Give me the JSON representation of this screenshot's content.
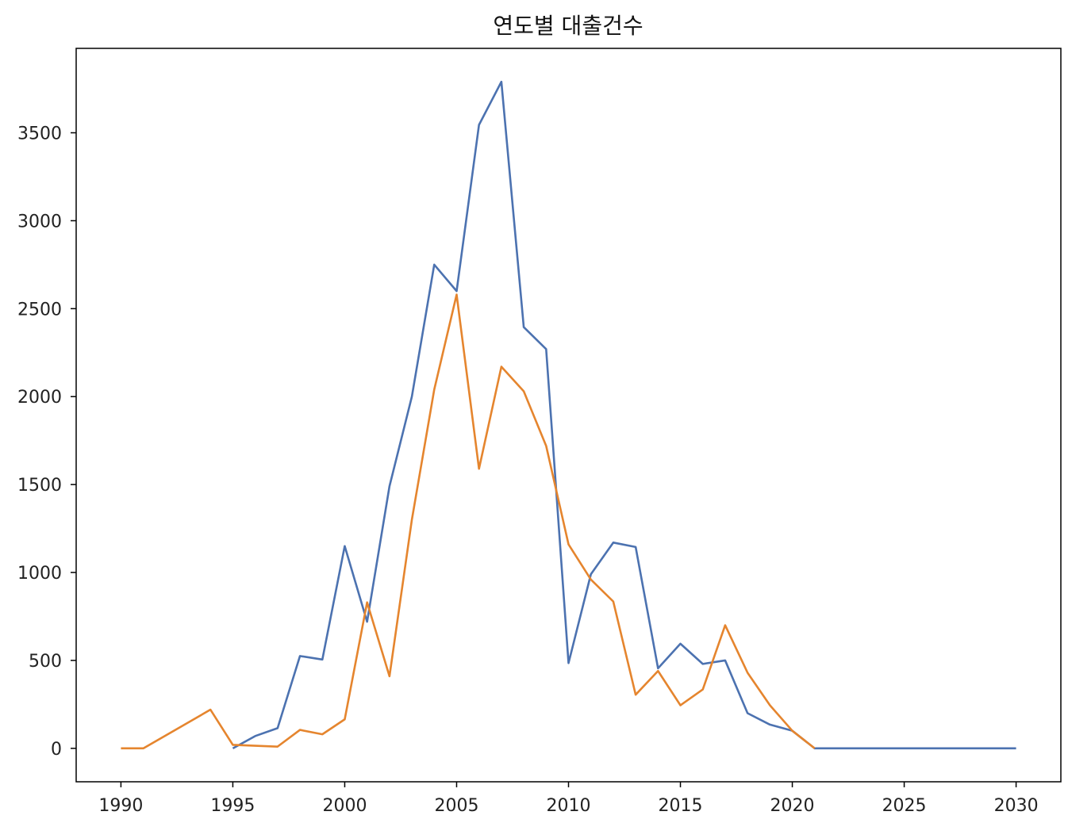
{
  "chart_data": {
    "type": "line",
    "title": "연도별 대출건수",
    "xlabel": "",
    "ylabel": "",
    "xlim": [
      1988,
      2032
    ],
    "ylim": [
      -190,
      3980
    ],
    "x_ticks": [
      "1990",
      "1995",
      "2000",
      "2005",
      "2010",
      "2015",
      "2020",
      "2025",
      "2030"
    ],
    "y_ticks": [
      "0",
      "500",
      "1000",
      "1500",
      "2000",
      "2500",
      "3000",
      "3500"
    ],
    "grid": false,
    "legend": "none",
    "series": [
      {
        "color": "#4c72b0",
        "points": [
          [
            1995,
            0
          ],
          [
            1996,
            70
          ],
          [
            1997,
            115
          ],
          [
            1998,
            525
          ],
          [
            1999,
            505
          ],
          [
            2000,
            1150
          ],
          [
            2001,
            720
          ],
          [
            2002,
            1490
          ],
          [
            2003,
            2000
          ],
          [
            2004,
            2750
          ],
          [
            2005,
            2600
          ],
          [
            2006,
            3545
          ],
          [
            2007,
            3790
          ],
          [
            2008,
            2395
          ],
          [
            2009,
            2270
          ],
          [
            2010,
            485
          ],
          [
            2011,
            990
          ],
          [
            2012,
            1170
          ],
          [
            2013,
            1145
          ],
          [
            2014,
            455
          ],
          [
            2015,
            595
          ],
          [
            2016,
            480
          ],
          [
            2017,
            500
          ],
          [
            2018,
            200
          ],
          [
            2019,
            135
          ],
          [
            2020,
            100
          ],
          [
            2021,
            0
          ],
          [
            2022,
            0
          ],
          [
            2023,
            0
          ],
          [
            2024,
            0
          ],
          [
            2025,
            0
          ],
          [
            2026,
            0
          ],
          [
            2027,
            0
          ],
          [
            2028,
            0
          ],
          [
            2029,
            0
          ],
          [
            2030,
            0
          ]
        ]
      },
      {
        "color": "#e5852e",
        "points": [
          [
            1990,
            0
          ],
          [
            1991,
            0
          ],
          [
            1994,
            220
          ],
          [
            1995,
            20
          ],
          [
            1996,
            15
          ],
          [
            1997,
            10
          ],
          [
            1998,
            105
          ],
          [
            1999,
            80
          ],
          [
            2000,
            165
          ],
          [
            2001,
            830
          ],
          [
            2002,
            410
          ],
          [
            2003,
            1300
          ],
          [
            2004,
            2040
          ],
          [
            2005,
            2580
          ],
          [
            2006,
            1590
          ],
          [
            2007,
            2170
          ],
          [
            2008,
            2030
          ],
          [
            2009,
            1720
          ],
          [
            2010,
            1160
          ],
          [
            2011,
            960
          ],
          [
            2012,
            835
          ],
          [
            2013,
            305
          ],
          [
            2014,
            440
          ],
          [
            2015,
            245
          ],
          [
            2016,
            335
          ],
          [
            2017,
            700
          ],
          [
            2018,
            430
          ],
          [
            2019,
            245
          ],
          [
            2020,
            100
          ],
          [
            2021,
            0
          ]
        ]
      }
    ]
  }
}
